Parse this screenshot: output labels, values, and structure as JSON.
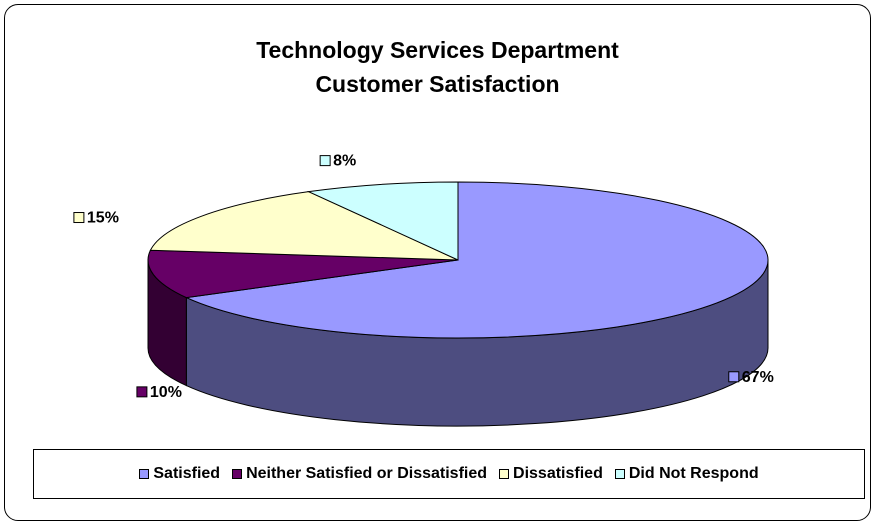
{
  "chart_data": {
    "type": "pie",
    "title_lines": [
      "Technology Services Department",
      "Customer Satisfaction"
    ],
    "categories": [
      "Satisfied",
      "Neither Satisfied or Dissatisfied",
      "Dissatisfied",
      "Did Not Respond"
    ],
    "values": [
      67,
      10,
      15,
      8
    ],
    "labels": [
      "67%",
      "10%",
      "15%",
      "8%"
    ],
    "colors": [
      "#9999ff",
      "#660066",
      "#ffffcc",
      "#ccffff"
    ],
    "side_colors": [
      "#4d4d80",
      "#330033",
      "#80806a",
      "#668080"
    ],
    "legend_position": "bottom",
    "style": "3d"
  }
}
